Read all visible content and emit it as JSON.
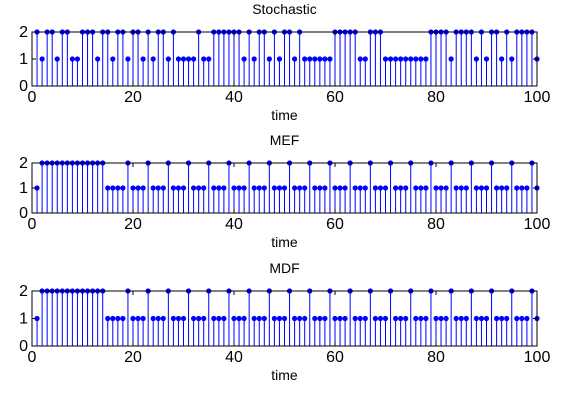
{
  "colors": {
    "stem": "#0000ff",
    "axis": "#000000",
    "background": "#ffffff"
  },
  "chart_data": [
    {
      "type": "stem",
      "title": "Stochastic",
      "xlabel": "time",
      "ylabel": "",
      "xlim": [
        0,
        100
      ],
      "ylim": [
        0,
        2
      ],
      "xticks": [
        0,
        20,
        40,
        60,
        80,
        100
      ],
      "yticks": [
        0,
        1,
        2
      ],
      "grid": false,
      "x": [
        1,
        2,
        3,
        4,
        5,
        6,
        7,
        8,
        9,
        10,
        11,
        12,
        13,
        14,
        15,
        16,
        17,
        18,
        19,
        20,
        21,
        22,
        23,
        24,
        25,
        26,
        27,
        28,
        29,
        30,
        31,
        32,
        33,
        34,
        35,
        36,
        37,
        38,
        39,
        40,
        41,
        42,
        43,
        44,
        45,
        46,
        47,
        48,
        49,
        50,
        51,
        52,
        53,
        54,
        55,
        56,
        57,
        58,
        59,
        60,
        61,
        62,
        63,
        64,
        65,
        66,
        67,
        68,
        69,
        70,
        71,
        72,
        73,
        74,
        75,
        76,
        77,
        78,
        79,
        80,
        81,
        82,
        83,
        84,
        85,
        86,
        87,
        88,
        89,
        90,
        91,
        92,
        93,
        94,
        95,
        96,
        97,
        98,
        99,
        100
      ],
      "values": [
        2,
        1,
        2,
        2,
        1,
        2,
        2,
        1,
        1,
        2,
        2,
        2,
        1,
        2,
        2,
        1,
        2,
        2,
        1,
        2,
        2,
        1,
        2,
        1,
        2,
        2,
        1,
        2,
        1,
        1,
        1,
        1,
        2,
        1,
        1,
        2,
        2,
        2,
        2,
        2,
        2,
        1,
        2,
        1,
        2,
        2,
        1,
        2,
        1,
        2,
        2,
        1,
        2,
        1,
        1,
        1,
        1,
        1,
        1,
        2,
        2,
        2,
        2,
        2,
        1,
        1,
        2,
        2,
        2,
        1,
        1,
        1,
        1,
        1,
        1,
        1,
        1,
        1,
        2,
        2,
        2,
        2,
        1,
        2,
        2,
        2,
        2,
        1,
        2,
        1,
        2,
        2,
        1,
        2,
        1,
        2,
        2,
        2,
        2,
        1
      ]
    },
    {
      "type": "stem",
      "title": "MEF",
      "xlabel": "time",
      "ylabel": "",
      "xlim": [
        0,
        100
      ],
      "ylim": [
        0,
        2
      ],
      "xticks": [
        0,
        20,
        40,
        60,
        80,
        100
      ],
      "yticks": [
        0,
        1,
        2
      ],
      "grid": false,
      "x": [
        1,
        2,
        3,
        4,
        5,
        6,
        7,
        8,
        9,
        10,
        11,
        12,
        13,
        14,
        15,
        16,
        17,
        18,
        19,
        20,
        21,
        22,
        23,
        24,
        25,
        26,
        27,
        28,
        29,
        30,
        31,
        32,
        33,
        34,
        35,
        36,
        37,
        38,
        39,
        40,
        41,
        42,
        43,
        44,
        45,
        46,
        47,
        48,
        49,
        50,
        51,
        52,
        53,
        54,
        55,
        56,
        57,
        58,
        59,
        60,
        61,
        62,
        63,
        64,
        65,
        66,
        67,
        68,
        69,
        70,
        71,
        72,
        73,
        74,
        75,
        76,
        77,
        78,
        79,
        80,
        81,
        82,
        83,
        84,
        85,
        86,
        87,
        88,
        89,
        90,
        91,
        92,
        93,
        94,
        95,
        96,
        97,
        98,
        99,
        100
      ],
      "values": [
        1,
        2,
        2,
        2,
        2,
        2,
        2,
        2,
        2,
        2,
        2,
        2,
        2,
        2,
        1,
        1,
        1,
        1,
        2,
        1,
        1,
        1,
        2,
        1,
        1,
        1,
        2,
        1,
        1,
        1,
        2,
        1,
        1,
        1,
        2,
        1,
        1,
        1,
        2,
        1,
        1,
        1,
        2,
        1,
        1,
        1,
        2,
        1,
        1,
        1,
        2,
        1,
        1,
        1,
        2,
        1,
        1,
        1,
        2,
        1,
        1,
        1,
        2,
        1,
        1,
        1,
        2,
        1,
        1,
        1,
        2,
        1,
        1,
        1,
        2,
        1,
        1,
        1,
        2,
        1,
        1,
        1,
        2,
        1,
        1,
        1,
        2,
        1,
        1,
        1,
        2,
        1,
        1,
        1,
        2,
        1,
        1,
        1,
        2,
        1
      ]
    },
    {
      "type": "stem",
      "title": "MDF",
      "xlabel": "time",
      "ylabel": "",
      "xlim": [
        0,
        100
      ],
      "ylim": [
        0,
        2
      ],
      "xticks": [
        0,
        20,
        40,
        60,
        80,
        100
      ],
      "yticks": [
        0,
        1,
        2
      ],
      "grid": false,
      "x": [
        1,
        2,
        3,
        4,
        5,
        6,
        7,
        8,
        9,
        10,
        11,
        12,
        13,
        14,
        15,
        16,
        17,
        18,
        19,
        20,
        21,
        22,
        23,
        24,
        25,
        26,
        27,
        28,
        29,
        30,
        31,
        32,
        33,
        34,
        35,
        36,
        37,
        38,
        39,
        40,
        41,
        42,
        43,
        44,
        45,
        46,
        47,
        48,
        49,
        50,
        51,
        52,
        53,
        54,
        55,
        56,
        57,
        58,
        59,
        60,
        61,
        62,
        63,
        64,
        65,
        66,
        67,
        68,
        69,
        70,
        71,
        72,
        73,
        74,
        75,
        76,
        77,
        78,
        79,
        80,
        81,
        82,
        83,
        84,
        85,
        86,
        87,
        88,
        89,
        90,
        91,
        92,
        93,
        94,
        95,
        96,
        97,
        98,
        99,
        100
      ],
      "values": [
        1,
        2,
        2,
        2,
        2,
        2,
        2,
        2,
        2,
        2,
        2,
        2,
        2,
        2,
        1,
        1,
        1,
        1,
        2,
        1,
        1,
        1,
        2,
        1,
        1,
        1,
        2,
        1,
        1,
        1,
        2,
        1,
        1,
        1,
        2,
        1,
        1,
        1,
        2,
        1,
        1,
        1,
        2,
        1,
        1,
        1,
        2,
        1,
        1,
        1,
        2,
        1,
        1,
        1,
        2,
        1,
        1,
        1,
        2,
        1,
        1,
        1,
        2,
        1,
        1,
        1,
        2,
        1,
        1,
        1,
        2,
        1,
        1,
        1,
        2,
        1,
        1,
        1,
        2,
        1,
        1,
        1,
        2,
        1,
        1,
        1,
        2,
        1,
        1,
        1,
        2,
        1,
        1,
        1,
        2,
        1,
        1,
        1,
        2,
        1
      ]
    }
  ]
}
